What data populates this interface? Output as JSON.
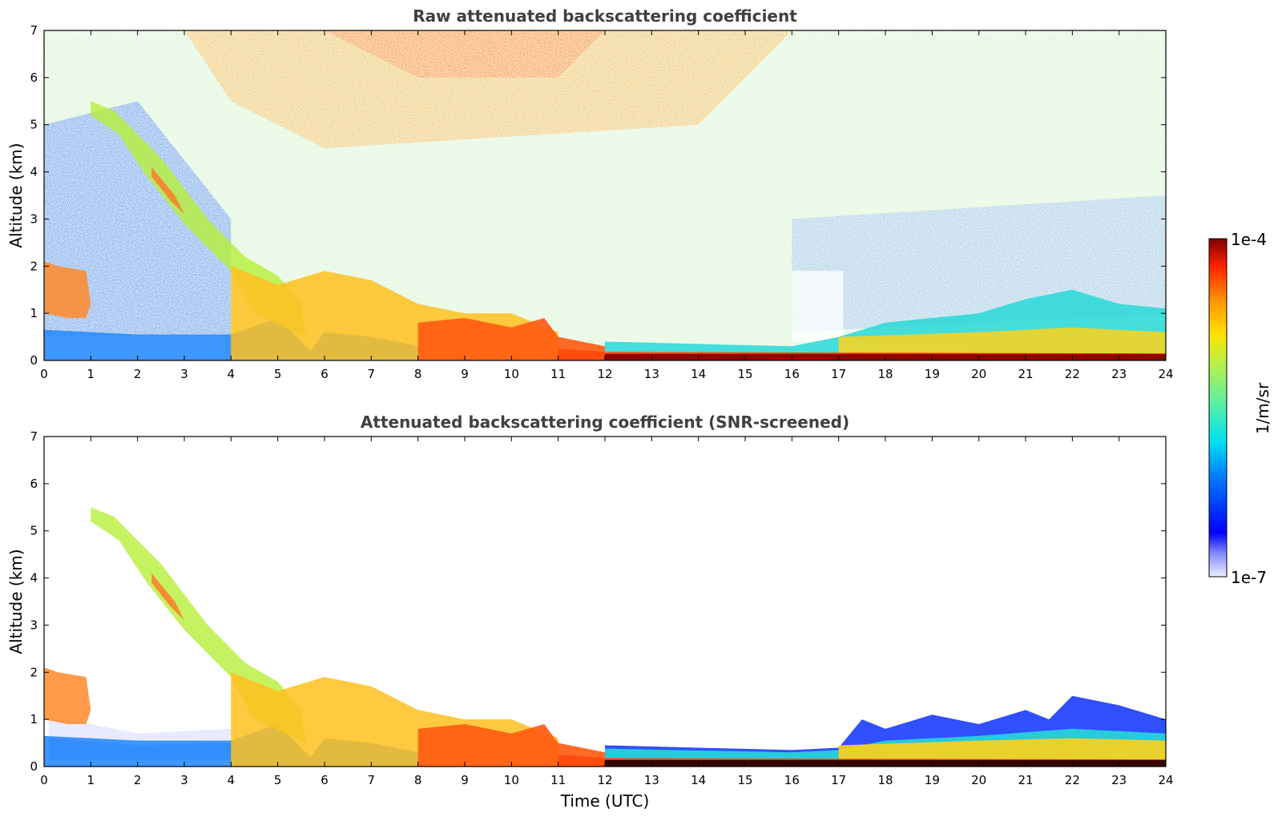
{
  "chart_data": [
    {
      "type": "heatmap",
      "title": "Raw attenuated backscattering coefficient",
      "xlabel": "",
      "ylabel": "Altitude (km)",
      "xlim": [
        0,
        24
      ],
      "ylim": [
        0,
        7
      ],
      "x_ticks": [
        "0",
        "1",
        "2",
        "3",
        "4",
        "5",
        "6",
        "7",
        "8",
        "9",
        "10",
        "11",
        "12",
        "13",
        "14",
        "15",
        "16",
        "17",
        "18",
        "19",
        "20",
        "21",
        "22",
        "23",
        "24"
      ],
      "y_ticks": [
        "0",
        "1",
        "2",
        "3",
        "4",
        "5",
        "6",
        "7"
      ],
      "grid": false,
      "screened": false
    },
    {
      "type": "heatmap",
      "title": "Attenuated backscattering coefficient (SNR-screened)",
      "xlabel": "Time (UTC)",
      "ylabel": "Altitude (km)",
      "xlim": [
        0,
        24
      ],
      "ylim": [
        0,
        7
      ],
      "x_ticks": [
        "0",
        "1",
        "2",
        "3",
        "4",
        "5",
        "6",
        "7",
        "8",
        "9",
        "10",
        "11",
        "12",
        "13",
        "14",
        "15",
        "16",
        "17",
        "18",
        "19",
        "20",
        "21",
        "22",
        "23",
        "24"
      ],
      "y_ticks": [
        "0",
        "1",
        "2",
        "3",
        "4",
        "5",
        "6",
        "7"
      ],
      "grid": false,
      "screened": true
    }
  ],
  "colorbar": {
    "unit_label": "1/m/sr",
    "max_label": "1e-4",
    "min_label": "1e-7",
    "min_value": 1e-07,
    "max_value": 0.0001,
    "scale": "log",
    "colormap": "jet"
  },
  "colors": {
    "title_color": "#404040"
  }
}
